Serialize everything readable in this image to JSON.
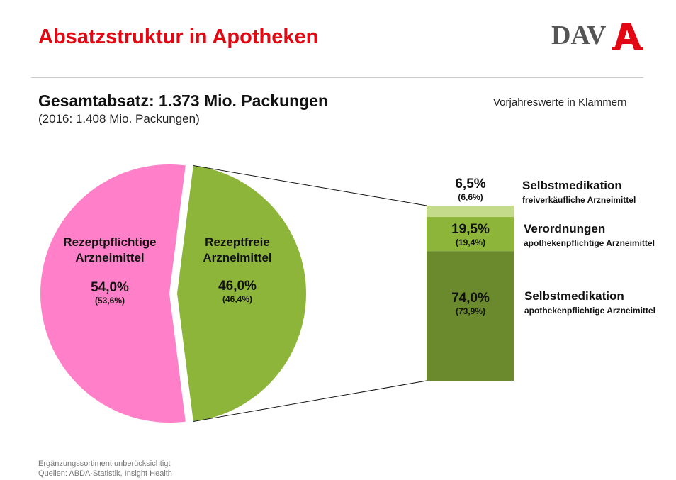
{
  "title": "Absatzstruktur in Apotheken",
  "logo_text": "DAV",
  "subtitle": "Gesamtabsatz: 1.373 Mio. Packungen",
  "subtitle_prev": "(2016: 1.408 Mio. Packungen)",
  "note": "Vorjahreswerte in Klammern",
  "footer": [
    "Ergänzungssortiment unberücksichtigt",
    "Quellen: ABDA-Statistik, Insight Health"
  ],
  "colors": {
    "title": "#e30613",
    "pink": "#ff80c8",
    "green": "#8db53a",
    "light_green": "#c3db8a",
    "dark_green": "#6b8a2d"
  },
  "chart_data": [
    {
      "type": "pie",
      "slices": [
        {
          "label": [
            "Rezeptpflichtige",
            "Arzneimittel"
          ],
          "value": 54.0,
          "value_text": "54,0%",
          "prev_text": "(53,6%)",
          "color": "#ff80c8"
        },
        {
          "label": [
            "Rezeptfreie",
            "Arzneimittel"
          ],
          "value": 46.0,
          "value_text": "46,0%",
          "prev_text": "(46,4%)",
          "color": "#8db53a"
        }
      ]
    },
    {
      "type": "bar",
      "stacked": true,
      "breakdown_of": "Rezeptfreie Arzneimittel",
      "segments": [
        {
          "title": "Selbstmedikation",
          "subtitle": "freiverkäufliche Arzneimittel",
          "value": 6.5,
          "value_text": "6,5%",
          "prev_text": "(6,6%)",
          "color": "#c3db8a"
        },
        {
          "title": "Verordnungen",
          "subtitle": "apothekenpflichtige Arzneimittel",
          "value": 19.5,
          "value_text": "19,5%",
          "prev_text": "(19,4%)",
          "color": "#8db53a"
        },
        {
          "title": "Selbstmedikation",
          "subtitle": "apothekenpflichtige Arzneimittel",
          "value": 74.0,
          "value_text": "74,0%",
          "prev_text": "(73,9%)",
          "color": "#6b8a2d"
        }
      ]
    }
  ]
}
